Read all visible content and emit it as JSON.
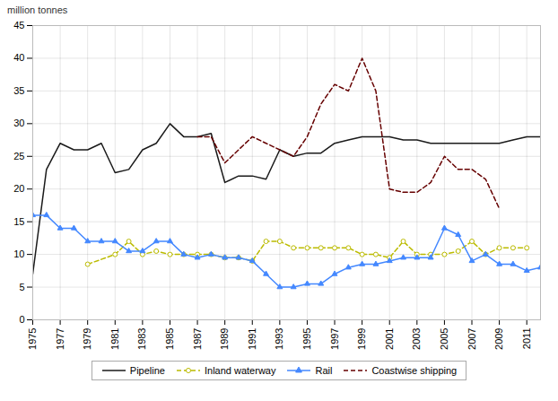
{
  "chart_data": {
    "type": "line",
    "ylabel": "million tonnes",
    "x": [
      1975,
      1976,
      1977,
      1978,
      1979,
      1980,
      1981,
      1982,
      1983,
      1984,
      1985,
      1986,
      1987,
      1988,
      1989,
      1990,
      1991,
      1992,
      1993,
      1994,
      1995,
      1996,
      1997,
      1998,
      1999,
      2000,
      2001,
      2002,
      2003,
      2004,
      2005,
      2006,
      2007,
      2008,
      2009,
      2010,
      2011,
      2012
    ],
    "series": [
      {
        "name": "Pipeline",
        "color": "#1a1a1a",
        "line_style": "solid",
        "values": [
          7,
          23,
          27,
          26,
          26,
          27,
          22.5,
          23,
          26,
          27,
          30,
          28,
          28,
          28.5,
          21,
          22,
          22,
          21.5,
          26,
          25,
          25.5,
          25.5,
          27,
          27.5,
          28,
          28,
          28,
          27.5,
          27.5,
          27,
          27,
          27,
          27,
          27,
          27,
          27.5,
          28,
          28
        ]
      },
      {
        "name": "Inland waterway",
        "color": "#bbbb00",
        "line_style": "dashed",
        "marker": "circle",
        "values": [
          null,
          null,
          null,
          null,
          8.5,
          null,
          10,
          12,
          10,
          10.5,
          10,
          10,
          10,
          10,
          9.5,
          9.5,
          9,
          12,
          12,
          11,
          11,
          11,
          11,
          11,
          10,
          10,
          9.5,
          12,
          10,
          10,
          10,
          10.5,
          12,
          10,
          11,
          11,
          11,
          null
        ]
      },
      {
        "name": "Rail",
        "color": "#4488ff",
        "line_style": "solid",
        "marker": "triangle",
        "values": [
          16,
          16,
          14,
          14,
          12,
          12,
          12,
          10.5,
          10.5,
          12,
          12,
          10,
          9.5,
          10,
          9.5,
          9.5,
          9,
          7,
          5,
          5,
          5.5,
          5.5,
          7,
          8,
          8.5,
          8.5,
          9,
          9.5,
          9.5,
          9.5,
          14,
          13,
          9,
          10,
          8.5,
          8.5,
          7.5,
          8
        ]
      },
      {
        "name": "Coastwise shipping",
        "color": "#660000",
        "line_style": "dashed",
        "values": [
          null,
          null,
          null,
          null,
          null,
          null,
          null,
          null,
          null,
          null,
          null,
          null,
          28,
          28,
          24,
          26,
          28,
          27,
          26,
          25,
          28,
          33,
          36,
          35,
          40,
          35,
          20,
          19.5,
          19.5,
          21,
          25,
          23,
          23,
          21.5,
          17,
          null,
          null,
          null
        ]
      }
    ],
    "xlim": [
      1975,
      2012
    ],
    "xticks": [
      1975,
      1977,
      1979,
      1981,
      1983,
      1985,
      1987,
      1989,
      1991,
      1993,
      1995,
      1997,
      1999,
      2001,
      2003,
      2005,
      2007,
      2009,
      2011
    ],
    "ylim": [
      0,
      45
    ],
    "yticks": [
      0,
      5,
      10,
      15,
      20,
      25,
      30,
      35,
      40,
      45
    ],
    "grid": true,
    "legend": "bottom"
  }
}
